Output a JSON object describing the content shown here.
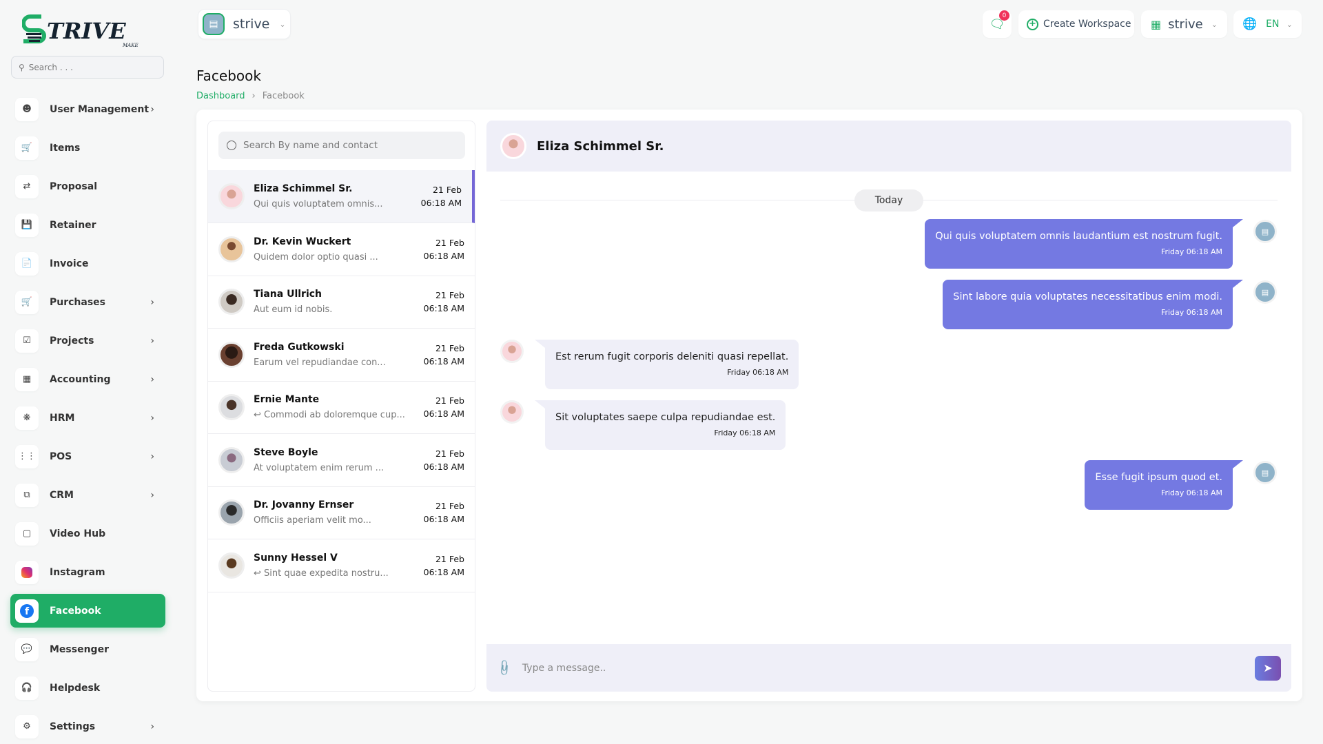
{
  "brand": {
    "logo_text": "STRIVE",
    "logo_sub": "MAKE",
    "green": "#1fad66"
  },
  "sidebar": {
    "search_placeholder": "Search . . .",
    "items": [
      {
        "label": "User Management",
        "icon": "users-icon",
        "chevron": true
      },
      {
        "label": "Items",
        "icon": "cart-icon",
        "chevron": false
      },
      {
        "label": "Proposal",
        "icon": "proposal-icon",
        "chevron": false
      },
      {
        "label": "Retainer",
        "icon": "retainer-icon",
        "chevron": false
      },
      {
        "label": "Invoice",
        "icon": "invoice-icon",
        "chevron": false
      },
      {
        "label": "Purchases",
        "icon": "cart-icon",
        "chevron": true
      },
      {
        "label": "Projects",
        "icon": "check-square-icon",
        "chevron": true
      },
      {
        "label": "Accounting",
        "icon": "grid-icon",
        "chevron": true
      },
      {
        "label": "HRM",
        "icon": "hrm-icon",
        "chevron": true
      },
      {
        "label": "POS",
        "icon": "dots-grid-icon",
        "chevron": true
      },
      {
        "label": "CRM",
        "icon": "crm-icon",
        "chevron": true
      },
      {
        "label": "Video Hub",
        "icon": "video-icon",
        "chevron": false
      },
      {
        "label": "Instagram",
        "icon": "instagram-icon",
        "chevron": false
      },
      {
        "label": "Facebook",
        "icon": "facebook-icon",
        "chevron": false,
        "active": true
      },
      {
        "label": "Messenger",
        "icon": "messenger-icon",
        "chevron": false
      },
      {
        "label": "Helpdesk",
        "icon": "headphones-icon",
        "chevron": false
      },
      {
        "label": "Settings",
        "icon": "gear-icon",
        "chevron": true
      }
    ]
  },
  "topbar": {
    "workspace": "strive",
    "notification_count": "0",
    "create_workspace": "Create Workspace",
    "workspace_right": "strive",
    "language": "EN"
  },
  "page": {
    "title": "Facebook",
    "breadcrumb": [
      "Dashboard",
      "Facebook"
    ]
  },
  "contacts": {
    "search_placeholder": "Search By name and contact",
    "list": [
      {
        "name": "Eliza Schimmel Sr.",
        "preview": "Qui quis voluptatem omnis...",
        "date": "21 Feb",
        "time": "06:18 AM",
        "reply": false,
        "selected": true
      },
      {
        "name": "Dr. Kevin Wuckert",
        "preview": "Quidem dolor optio quasi ...",
        "date": "21 Feb",
        "time": "06:18 AM",
        "reply": false
      },
      {
        "name": "Tiana Ullrich",
        "preview": "Aut eum id nobis.",
        "date": "21 Feb",
        "time": "06:18 AM",
        "reply": false
      },
      {
        "name": "Freda Gutkowski",
        "preview": "Earum vel repudiandae con...",
        "date": "21 Feb",
        "time": "06:18 AM",
        "reply": false
      },
      {
        "name": "Ernie Mante",
        "preview": "Commodi ab doloremque cup...",
        "date": "21 Feb",
        "time": "06:18 AM",
        "reply": true
      },
      {
        "name": "Steve Boyle",
        "preview": "At voluptatem enim rerum ...",
        "date": "21 Feb",
        "time": "06:18 AM",
        "reply": false
      },
      {
        "name": "Dr. Jovanny Ernser",
        "preview": "Officiis aperiam velit mo...",
        "date": "21 Feb",
        "time": "06:18 AM",
        "reply": false
      },
      {
        "name": "Sunny Hessel V",
        "preview": "Sint quae expedita nostru...",
        "date": "21 Feb",
        "time": "06:18 AM",
        "reply": true
      }
    ]
  },
  "chat": {
    "contact_name": "Eliza Schimmel Sr.",
    "day_label": "Today",
    "bubble_color": "#7479e2",
    "messages": [
      {
        "dir": "sent",
        "text": "Qui quis voluptatem omnis laudantium est nostrum fugit.",
        "time": "Friday 06:18 AM"
      },
      {
        "dir": "sent",
        "text": "Sint labore quia voluptates necessitatibus enim modi.",
        "time": "Friday 06:18 AM"
      },
      {
        "dir": "received",
        "text": "Est rerum fugit corporis deleniti quasi repellat.",
        "time": "Friday 06:18 AM"
      },
      {
        "dir": "received",
        "text": "Sit voluptates saepe culpa repudiandae est.",
        "time": "Friday 06:18 AM"
      },
      {
        "dir": "sent",
        "text": "Esse fugit ipsum quod et.",
        "time": "Friday 06:18 AM"
      }
    ],
    "input_placeholder": "Type a message.."
  }
}
